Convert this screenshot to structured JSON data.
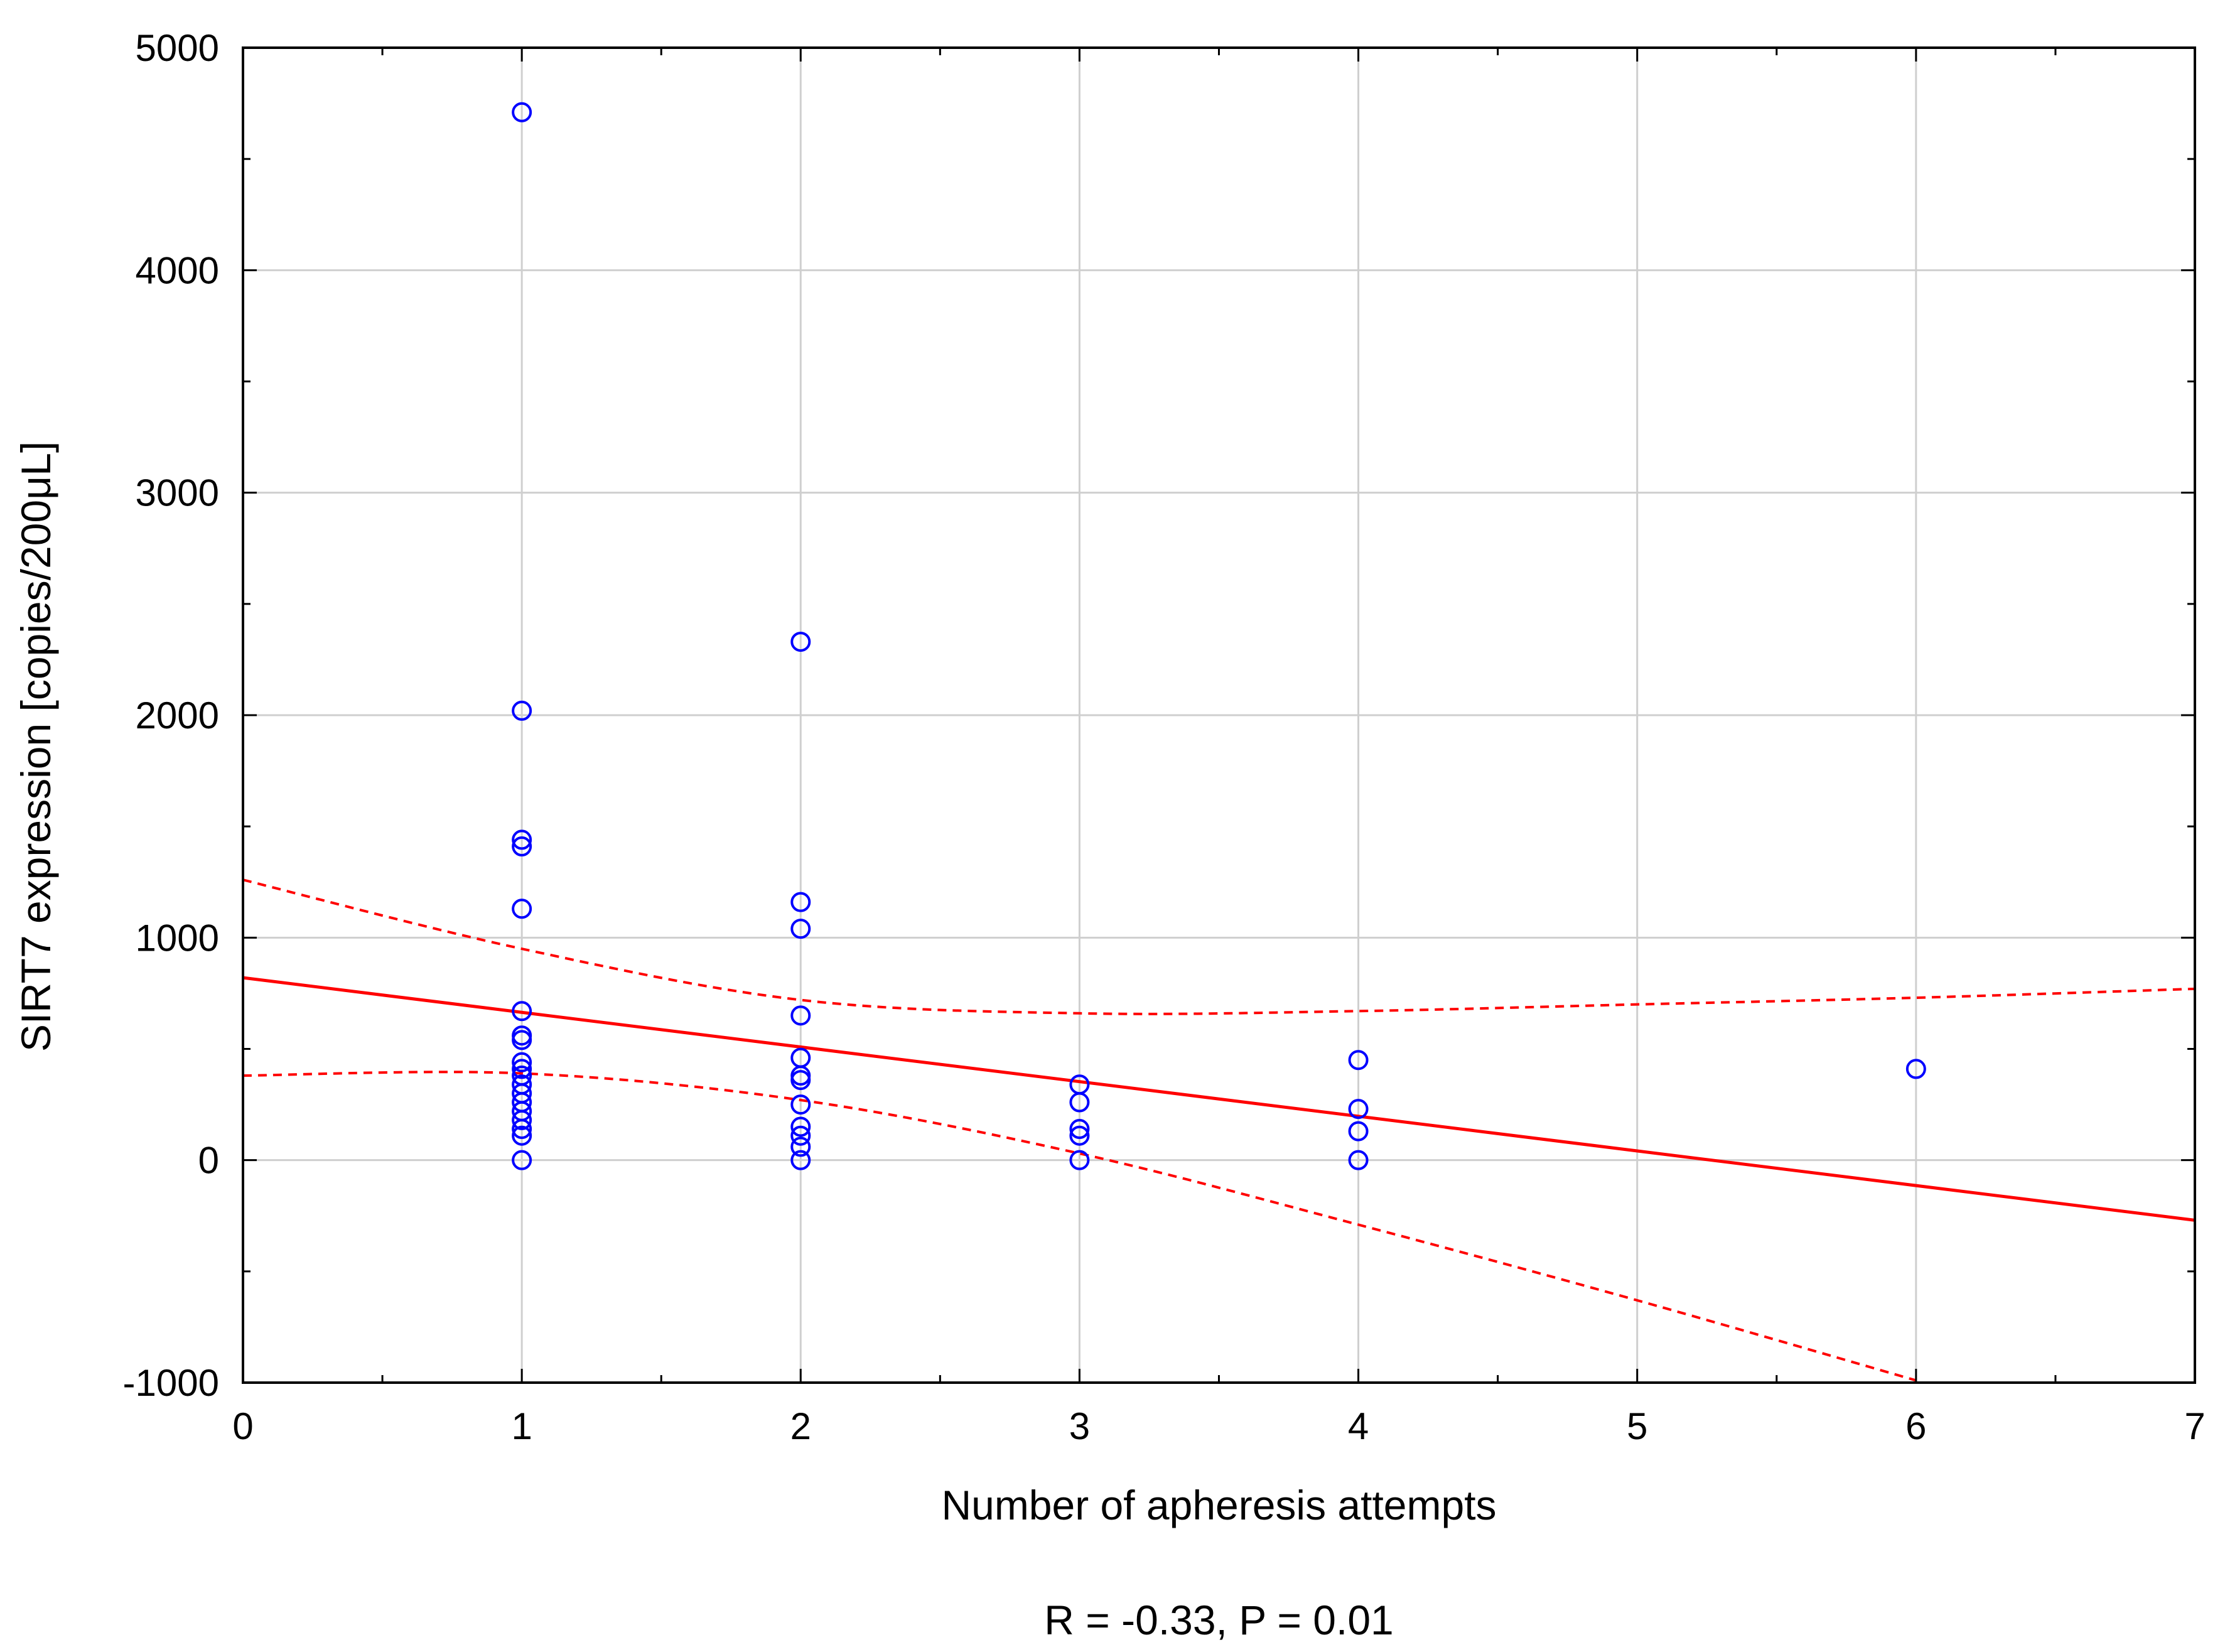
{
  "chart_data": {
    "type": "scatter",
    "title": "",
    "xlabel": "Number of apheresis attempts",
    "ylabel": "SIRT7 expression [copies/200μL]",
    "xlim": [
      0,
      7
    ],
    "ylim": [
      -1000,
      5000
    ],
    "x_ticks": [
      0,
      1,
      2,
      3,
      4,
      5,
      6,
      7
    ],
    "x_tick_labels": [
      "0",
      "1",
      "2",
      "3",
      "4",
      "5",
      "6",
      "7"
    ],
    "y_ticks": [
      -1000,
      0,
      1000,
      2000,
      3000,
      4000,
      5000
    ],
    "y_tick_labels": [
      "-1000",
      "0",
      "1000",
      "2000",
      "3000",
      "4000",
      "5000"
    ],
    "grid": true,
    "annotation": "R = -0.33, P = 0.01",
    "colors": {
      "points": "#0000ff",
      "fit": "#ff0000",
      "grid": "#cfcfcf"
    },
    "points": [
      {
        "x": 1,
        "y": 4710
      },
      {
        "x": 1,
        "y": 2020
      },
      {
        "x": 1,
        "y": 1440
      },
      {
        "x": 1,
        "y": 1410
      },
      {
        "x": 1,
        "y": 1130
      },
      {
        "x": 1,
        "y": 670
      },
      {
        "x": 1,
        "y": 560
      },
      {
        "x": 1,
        "y": 540
      },
      {
        "x": 1,
        "y": 440
      },
      {
        "x": 1,
        "y": 410
      },
      {
        "x": 1,
        "y": 380
      },
      {
        "x": 1,
        "y": 340
      },
      {
        "x": 1,
        "y": 300
      },
      {
        "x": 1,
        "y": 260
      },
      {
        "x": 1,
        "y": 220
      },
      {
        "x": 1,
        "y": 180
      },
      {
        "x": 1,
        "y": 140
      },
      {
        "x": 1,
        "y": 110
      },
      {
        "x": 1,
        "y": 0
      },
      {
        "x": 2,
        "y": 2330
      },
      {
        "x": 2,
        "y": 1160
      },
      {
        "x": 2,
        "y": 1040
      },
      {
        "x": 2,
        "y": 650
      },
      {
        "x": 2,
        "y": 460
      },
      {
        "x": 2,
        "y": 380
      },
      {
        "x": 2,
        "y": 360
      },
      {
        "x": 2,
        "y": 250
      },
      {
        "x": 2,
        "y": 150
      },
      {
        "x": 2,
        "y": 110
      },
      {
        "x": 2,
        "y": 60
      },
      {
        "x": 2,
        "y": 0
      },
      {
        "x": 3,
        "y": 340
      },
      {
        "x": 3,
        "y": 260
      },
      {
        "x": 3,
        "y": 140
      },
      {
        "x": 3,
        "y": 110
      },
      {
        "x": 3,
        "y": 0
      },
      {
        "x": 4,
        "y": 450
      },
      {
        "x": 4,
        "y": 230
      },
      {
        "x": 4,
        "y": 130
      },
      {
        "x": 4,
        "y": 0
      },
      {
        "x": 6,
        "y": 410
      }
    ],
    "series": [
      {
        "name": "regression",
        "style": "solid",
        "x": [
          0,
          7
        ],
        "y": [
          820,
          -270
        ]
      },
      {
        "name": "upper 95% confidence band",
        "style": "dashed",
        "x": [
          0,
          1,
          2,
          3,
          4,
          5,
          6,
          7
        ],
        "y": [
          1260,
          950,
          720,
          660,
          670,
          700,
          730,
          770
        ]
      },
      {
        "name": "lower 95% confidence band",
        "style": "dashed",
        "x": [
          0,
          1,
          2,
          3,
          4,
          5,
          6
        ],
        "y": [
          380,
          390,
          270,
          30,
          -290,
          -630,
          -990
        ]
      }
    ]
  }
}
